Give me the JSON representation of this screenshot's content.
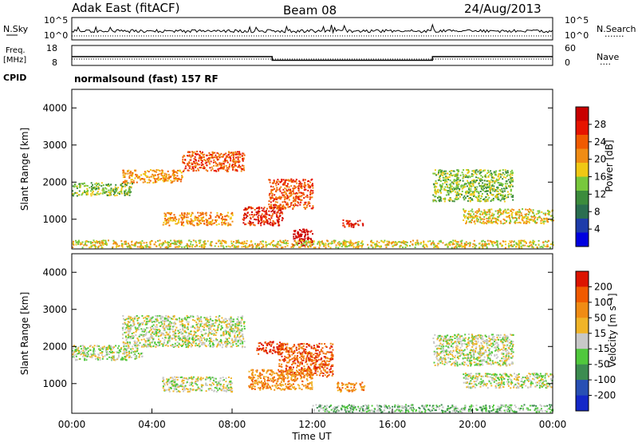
{
  "header": {
    "station": "Adak East (fitACF)",
    "beam": "Beam 08",
    "date": "24/Aug/2013"
  },
  "strip_nsky": {
    "label": "N.Sky",
    "y_ticks": [
      "10^5",
      "10^0"
    ],
    "right_ticks": [
      "10^5",
      "10^0"
    ],
    "right_label": "N.Search",
    "dotted_indicator": "......."
  },
  "strip_freq": {
    "label_line1": "Freq.",
    "label_line2": "[MHz]",
    "y_ticks": [
      "18",
      "8"
    ],
    "right_ticks": [
      "60",
      "0"
    ],
    "right_label": "Nave",
    "dotted_indicator": "....",
    "cpid_label": "CPID",
    "cpid_text": "normalsound (fast) 157 RF",
    "freq_steps_mhz": [
      {
        "from_hour": 0,
        "to_hour": 10,
        "value": 12.4
      },
      {
        "from_hour": 10,
        "to_hour": 18,
        "value": 10.6
      },
      {
        "from_hour": 18,
        "to_hour": 24,
        "value": 12.4
      }
    ]
  },
  "chart_data": [
    {
      "type": "heatmap",
      "panel": "power",
      "ylabel": "Slant Range [km]",
      "yticks": [
        "1000",
        "2000",
        "3000",
        "4000"
      ],
      "ylim": [
        200,
        4500
      ],
      "xlim": [
        "00:00",
        "24:00"
      ],
      "colorbar_label": "Power [dB]",
      "colorbar_ticks": [
        "28",
        "24",
        "20",
        "16",
        "12",
        "8",
        "4"
      ],
      "colors": [
        "#0000e0",
        "#1e3caa",
        "#2a6e50",
        "#3c8c3c",
        "#78c83c",
        "#f0c814",
        "#f08c14",
        "#f05a00",
        "#e61400",
        "#c80000"
      ],
      "echo_regions": [
        {
          "x0": 0.0,
          "x1": 3.0,
          "y0": 1650,
          "y1": 2000,
          "level": "8"
        },
        {
          "x0": 2.5,
          "x1": 5.5,
          "y0": 2000,
          "y1": 2350,
          "level": "16"
        },
        {
          "x0": 5.5,
          "x1": 8.6,
          "y0": 2300,
          "y1": 2850,
          "level": "20"
        },
        {
          "x0": 4.5,
          "x1": 8.0,
          "y0": 850,
          "y1": 1200,
          "level": "16"
        },
        {
          "x0": 8.5,
          "x1": 10.5,
          "y0": 850,
          "y1": 1350,
          "level": "24"
        },
        {
          "x0": 9.8,
          "x1": 12.0,
          "y0": 1300,
          "y1": 2100,
          "level": "20"
        },
        {
          "x0": 11.0,
          "x1": 12.0,
          "y0": 300,
          "y1": 750,
          "level": "28"
        },
        {
          "x0": 13.5,
          "x1": 14.5,
          "y0": 800,
          "y1": 1000,
          "level": "24"
        },
        {
          "x0": 19.5,
          "x1": 24.0,
          "y0": 900,
          "y1": 1300,
          "level": "12"
        },
        {
          "x0": 18.0,
          "x1": 22.0,
          "y0": 1500,
          "y1": 2350,
          "level": "8"
        },
        {
          "x0": 0.0,
          "x1": 24.0,
          "y0": 250,
          "y1": 450,
          "level": "12"
        }
      ]
    },
    {
      "type": "heatmap",
      "panel": "velocity",
      "ylabel": "Slant Range [km]",
      "yticks": [
        "1000",
        "2000",
        "3000",
        "4000"
      ],
      "ylim": [
        200,
        4500
      ],
      "xlim": [
        "00:00",
        "24:00"
      ],
      "colorbar_label": "Velocity [m s⁻¹]",
      "colorbar_ticks": [
        "200",
        "100",
        "50",
        "15",
        "-15",
        "-50",
        "-100",
        "-200"
      ],
      "colors": [
        "#1428c8",
        "#2850b4",
        "#3c8c50",
        "#50c83c",
        "#c8c8c8",
        "#f0b428",
        "#f08c14",
        "#f05a00",
        "#dc1400"
      ],
      "echo_regions": [
        {
          "x0": 0.0,
          "x1": 3.5,
          "y0": 1650,
          "y1": 2050,
          "level": "-15"
        },
        {
          "x0": 2.5,
          "x1": 8.6,
          "y0": 2000,
          "y1": 2850,
          "level": "-15"
        },
        {
          "x0": 4.5,
          "x1": 8.0,
          "y0": 800,
          "y1": 1200,
          "level": "-15"
        },
        {
          "x0": 9.2,
          "x1": 10.5,
          "y0": 1800,
          "y1": 2150,
          "level": "200"
        },
        {
          "x0": 10.3,
          "x1": 13.0,
          "y0": 1200,
          "y1": 2100,
          "level": "100"
        },
        {
          "x0": 8.8,
          "x1": 12.0,
          "y0": 850,
          "y1": 1400,
          "level": "50"
        },
        {
          "x0": 13.2,
          "x1": 14.6,
          "y0": 800,
          "y1": 1050,
          "level": "50"
        },
        {
          "x0": 12.0,
          "x1": 24.0,
          "y0": 250,
          "y1": 450,
          "level": "-50"
        },
        {
          "x0": 19.5,
          "x1": 24.0,
          "y0": 900,
          "y1": 1300,
          "level": "-15"
        },
        {
          "x0": 18.0,
          "x1": 22.0,
          "y0": 1500,
          "y1": 2350,
          "level": "-15"
        }
      ]
    }
  ],
  "x_axis": {
    "ticks": [
      "00:00",
      "04:00",
      "08:00",
      "12:00",
      "16:00",
      "20:00",
      "00:00"
    ],
    "label": "Time UT"
  }
}
